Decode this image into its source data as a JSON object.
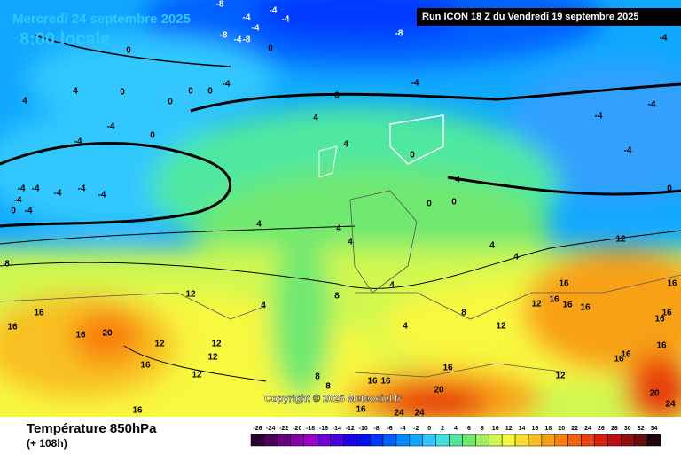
{
  "header": {
    "date": "Mercredi 24 septembre 2025",
    "time": "8:00 locale",
    "run": "Run ICON 18 Z du Vendredi 19 septembre 2025"
  },
  "copyright": "Copyright © 2025 Meteociel.fr",
  "footer": {
    "title": "Température 850hPa",
    "lead": "(+ 108h)"
  },
  "contour_labels": [
    -8,
    -4,
    -4,
    -4,
    -4,
    -8,
    -4,
    -8,
    -8,
    -4,
    0,
    0,
    -4,
    -4,
    0,
    0,
    0,
    0,
    0,
    4,
    4,
    -4,
    -4,
    0,
    4,
    4,
    0,
    -4,
    -4,
    -4,
    -4,
    -4,
    -4,
    -4,
    -4,
    -4,
    -4,
    0,
    4,
    0,
    0,
    0,
    4,
    4,
    4,
    4,
    4,
    12,
    8,
    12,
    4,
    8,
    4,
    16,
    16,
    16,
    20,
    12,
    12,
    12,
    16,
    12,
    4,
    8,
    12,
    12,
    16,
    16,
    16,
    16,
    16,
    16,
    16,
    16,
    16,
    16,
    12,
    16,
    16,
    16,
    20,
    16,
    24,
    24,
    20,
    24,
    8,
    8,
    16
  ],
  "legend": {
    "labels": [
      -26,
      -24,
      -22,
      -20,
      -18,
      -16,
      -14,
      -12,
      -10,
      -8,
      -6,
      -4,
      -2,
      0,
      2,
      4,
      6,
      8,
      10,
      12,
      14,
      16,
      18,
      20,
      22,
      24,
      26,
      28,
      30,
      32,
      34
    ],
    "colors": [
      "#2b0030",
      "#4a0058",
      "#66007e",
      "#8200a4",
      "#9c00c4",
      "#7000d8",
      "#4a00e0",
      "#2000e8",
      "#0010f0",
      "#0038ff",
      "#0060ff",
      "#0088ff",
      "#10a8ff",
      "#30c8ff",
      "#40e0e0",
      "#50e8a0",
      "#70e870",
      "#a0f060",
      "#d0f850",
      "#f8f840",
      "#f8e030",
      "#f8c020",
      "#f8a018",
      "#f88010",
      "#f06010",
      "#e84010",
      "#d82010",
      "#b81010",
      "#901010",
      "#601010",
      "#200808"
    ]
  }
}
